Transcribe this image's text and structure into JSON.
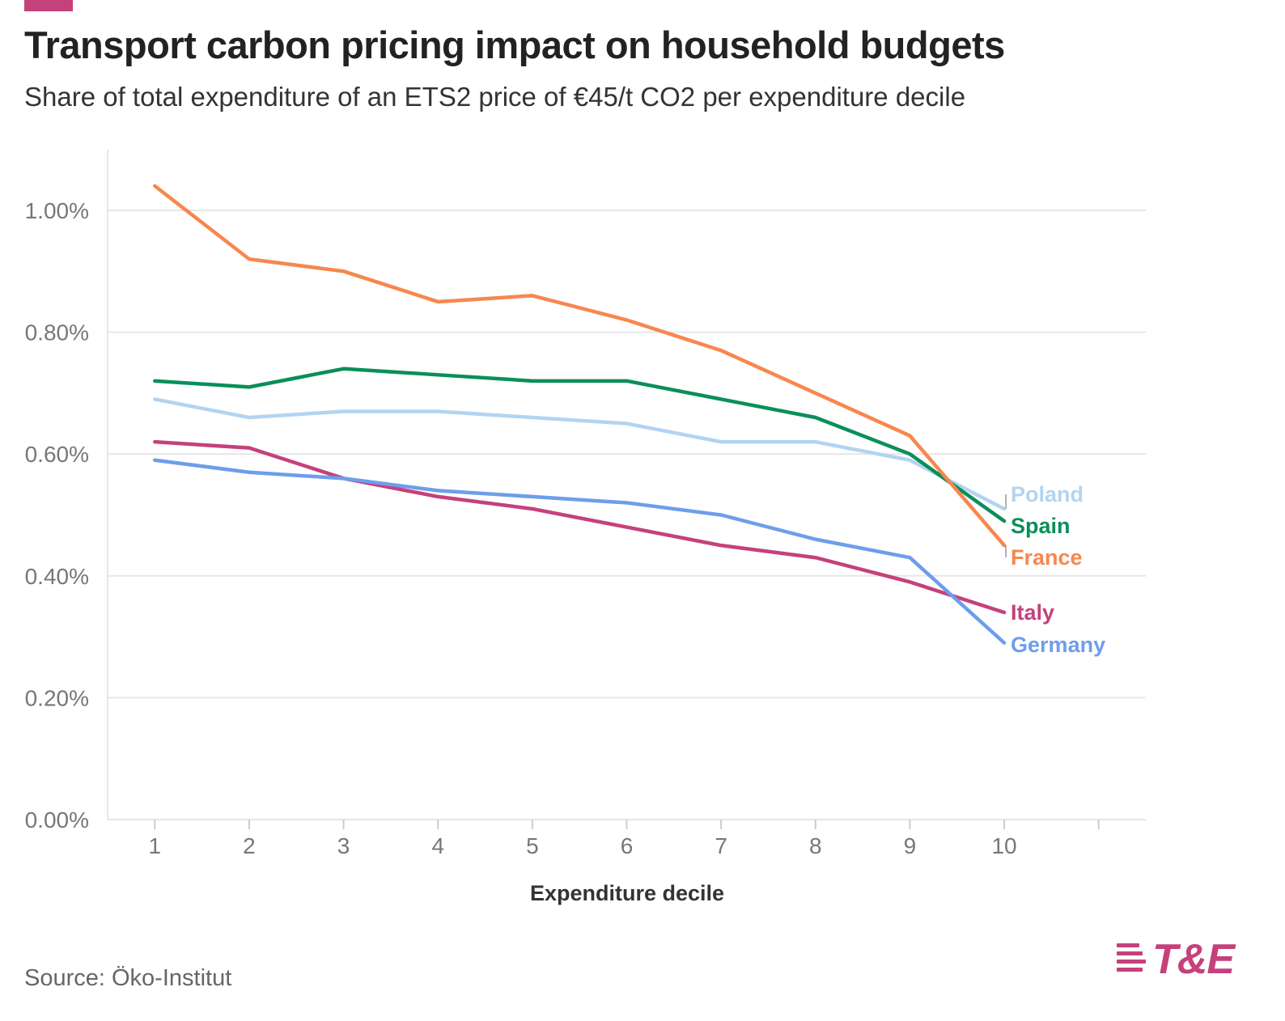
{
  "header": {
    "title": "Transport carbon pricing impact on household budgets",
    "subtitle": "Share of total expenditure of an ETS2 price of €45/t CO2 per expenditure decile"
  },
  "footer": {
    "source": "Source: Öko-Institut",
    "logo_text": "T&E"
  },
  "colors": {
    "brand": "#c5417c",
    "grid": "#e6e6e6",
    "axis_text": "#777777"
  },
  "chart_data": {
    "type": "line",
    "title": "Transport carbon pricing impact on household budgets",
    "subtitle": "Share of total expenditure of an ETS2 price of €45/t CO2 per expenditure decile",
    "xlabel": "Expenditure decile",
    "ylabel": "",
    "x": [
      1,
      2,
      3,
      4,
      5,
      6,
      7,
      8,
      9,
      10
    ],
    "x_tick_labels": [
      "1",
      "2",
      "3",
      "4",
      "5",
      "6",
      "7",
      "8",
      "9",
      "10"
    ],
    "xlim": [
      0.5,
      11.5
    ],
    "ylim": [
      0,
      1.1
    ],
    "y_ticks": [
      0,
      0.2,
      0.4,
      0.6,
      0.8,
      1.0
    ],
    "y_tick_labels": [
      "0.00%",
      "0.20%",
      "0.40%",
      "0.60%",
      "0.80%",
      "1.00%"
    ],
    "grid": true,
    "legend": "direct labels at line ends",
    "series": [
      {
        "name": "Poland",
        "color": "#b3d4f0",
        "values": [
          0.69,
          0.66,
          0.67,
          0.67,
          0.66,
          0.65,
          0.62,
          0.62,
          0.59,
          0.51
        ]
      },
      {
        "name": "Spain",
        "color": "#0a8f5a",
        "values": [
          0.72,
          0.71,
          0.74,
          0.73,
          0.72,
          0.72,
          0.69,
          0.66,
          0.6,
          0.49
        ]
      },
      {
        "name": "France",
        "color": "#f7874f",
        "values": [
          1.04,
          0.92,
          0.9,
          0.85,
          0.86,
          0.82,
          0.77,
          0.7,
          0.63,
          0.45
        ]
      },
      {
        "name": "Italy",
        "color": "#c5417c",
        "values": [
          0.62,
          0.61,
          0.56,
          0.53,
          0.51,
          0.48,
          0.45,
          0.43,
          0.39,
          0.34
        ]
      },
      {
        "name": "Germany",
        "color": "#6d9eeb",
        "values": [
          0.59,
          0.57,
          0.56,
          0.54,
          0.53,
          0.52,
          0.5,
          0.46,
          0.43,
          0.29
        ]
      }
    ]
  }
}
